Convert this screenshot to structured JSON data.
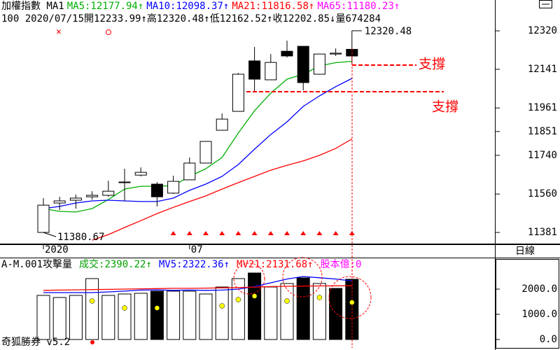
{
  "chart_data": [
    {
      "type": "candlestick",
      "title": "加權指數 MA1",
      "info": [
        "100 2020/07/15 ",
        "開12233.99↑",
        "高12320.48↑",
        "低12162.52↑",
        "收12202.85↓",
        "量674284"
      ],
      "categories": [
        "2020",
        null,
        null,
        null,
        null,
        null,
        null,
        null,
        null,
        "07",
        null,
        null,
        null,
        null,
        null,
        null,
        null,
        null,
        null,
        null
      ],
      "open": [
        11381,
        11518,
        11531,
        11547,
        11554,
        11613,
        11648,
        11606,
        11564,
        11626,
        11704,
        11857,
        11945,
        12180,
        12092,
        12225,
        12248,
        12118,
        12212,
        12233.99
      ],
      "high": [
        11541,
        11547,
        11557,
        11573,
        11622,
        11678,
        11684,
        11616,
        11645,
        11730,
        11805,
        11935,
        12124,
        12245,
        12212,
        12274,
        12248,
        12212,
        12238,
        12320.48
      ],
      "low": [
        11380.67,
        11485,
        11492,
        11534,
        11547,
        11528,
        11642,
        11502,
        11560,
        11626,
        11704,
        11857,
        11945,
        12040,
        12092,
        12196,
        12043,
        12118,
        12203,
        12162.52
      ],
      "close": [
        11508,
        11528,
        11541,
        11554,
        11573,
        11616,
        11661,
        11547,
        11619,
        11704,
        11805,
        11909,
        12118,
        12095,
        12173,
        12203,
        12079,
        12212,
        12216,
        12202.85
      ],
      "series": [
        {
          "name": "MA5:12177.94↑",
          "color": "#00b000",
          "values": [
            11492,
            11479,
            11476,
            11492,
            11534,
            11583,
            11596,
            11596,
            11599,
            11642,
            11678,
            11730,
            11844,
            11948,
            12030,
            12095,
            12118,
            12157,
            12172,
            12177.94
          ]
        },
        {
          "name": "MA10:12098.37↑",
          "color": "#0000ff",
          "values": [
            11492,
            11502,
            11518,
            11528,
            11531,
            11528,
            11525,
            11525,
            11541,
            11577,
            11606,
            11642,
            11697,
            11769,
            11837,
            11896,
            11968,
            12017,
            12060,
            12098.37
          ]
        },
        {
          "name": "MA21:11816.58↑",
          "color": "#ff0000",
          "values": [
            null,
            null,
            null,
            11345,
            11371,
            11404,
            11436,
            11469,
            11498,
            11525,
            11551,
            11583,
            11613,
            11642,
            11671,
            11694,
            11714,
            11740,
            11772,
            11816.58
          ]
        }
      ],
      "extra_legend": [
        {
          "name": "MA65:11180.23↑",
          "color": "#ff00ff"
        }
      ],
      "annotations": [
        "12320.48",
        "11380.67",
        "支撐",
        "支撐"
      ],
      "ylim": [
        11329,
        12405
      ],
      "yticks": [
        12320,
        12141,
        11961,
        11851,
        11740,
        11560,
        11381
      ],
      "period": "日線"
    },
    {
      "type": "bar",
      "title": "A-M.001攻擊量",
      "name": "成交:2390.22↑",
      "color": "#00a000",
      "values": [
        1750,
        1667,
        1750,
        2417,
        1750,
        1806,
        1833,
        1917,
        1917,
        1917,
        1806,
        2083,
        2417,
        2639,
        2083,
        2222,
        2444,
        2222,
        2028,
        2390.22
      ],
      "bar_colors": [
        "#ffffff",
        "#ffffff",
        "#ffffff",
        "#ffffff",
        "#ffffff",
        "#ffffff",
        "#ffffff",
        "#000000",
        "#ffffff",
        "#ffffff",
        "#ffffff",
        "#ffffff",
        "#ffffff",
        "#000000",
        "#ffffff",
        "#ffffff",
        "#000000",
        "#ffffff",
        "#000000",
        "#000000"
      ],
      "series": [
        {
          "name": "MV5:2322.36↑",
          "color": "#0000ff",
          "values": [
            1860,
            1860,
            1860,
            1860,
            1890,
            1920,
            1960,
            1970,
            1950,
            1960,
            1950,
            1960,
            2000,
            2100,
            2250,
            2400,
            2500,
            2450,
            2400,
            2322.36
          ]
        },
        {
          "name": "MV21:2131.68↑",
          "color": "#ff0000",
          "values": [
            1950,
            1960,
            1970,
            1980,
            1990,
            2000,
            2010,
            2020,
            2030,
            2030,
            2040,
            2050,
            2060,
            2080,
            2100,
            2110,
            2120,
            2125,
            2130,
            2131.68
          ]
        }
      ],
      "extra_legend": [
        {
          "name": "股本億:0",
          "color": "#ff00ff"
        }
      ],
      "ylim": [
        -333,
        3194
      ],
      "yticks": [
        {
          "value": 2000,
          "label": "2000.0"
        },
        {
          "value": 1000,
          "label": "1000.0"
        },
        {
          "value": 0,
          "label": "0.0"
        }
      ]
    }
  ],
  "footer": "奇狐勝券 v5.2"
}
